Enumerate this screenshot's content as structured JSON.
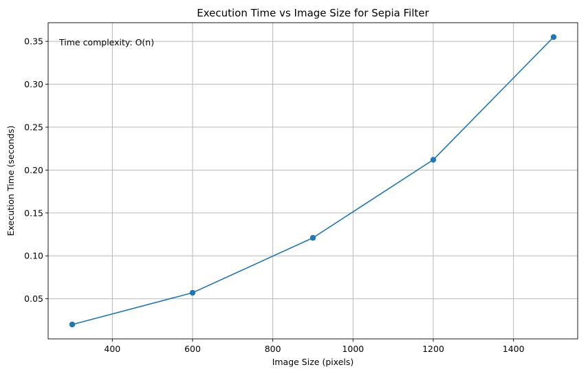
{
  "chart_data": {
    "type": "line",
    "title": "Execution Time vs Image Size for Sepia Filter",
    "xlabel": "Image Size (pixels)",
    "ylabel": "Execution Time (seconds)",
    "annotation": "Time complexity: O(n)",
    "x": [
      300,
      600,
      900,
      1200,
      1500
    ],
    "series": [
      {
        "values": [
          0.02,
          0.057,
          0.121,
          0.212,
          0.355
        ],
        "color": "#1f77b4",
        "marker": "circle"
      }
    ],
    "xlim": [
      240,
      1560
    ],
    "ylim": [
      0.00325,
      0.37175
    ],
    "xticks": [
      400,
      600,
      800,
      1000,
      1200,
      1400
    ],
    "xtick_labels": [
      "400",
      "600",
      "800",
      "1000",
      "1200",
      "1400"
    ],
    "yticks": [
      0.05,
      0.1,
      0.15,
      0.2,
      0.25,
      0.3,
      0.35
    ],
    "ytick_labels": [
      "0.05",
      "0.10",
      "0.15",
      "0.20",
      "0.25",
      "0.30",
      "0.35"
    ],
    "grid": true,
    "legend": "none",
    "grid_color": "#b0b0b0"
  }
}
